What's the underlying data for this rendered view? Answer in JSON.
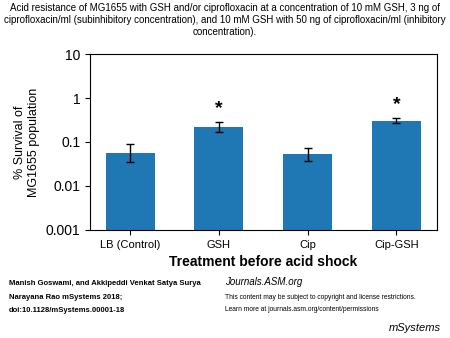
{
  "chart_data": {
    "type": "bar",
    "title": "Acid resistance of MG1655 with GSH and/or ciprofloxacin at a concentration of 10 mM GSH, 3 ng of ciprofloxacin/ml (subinhibitory concentration), and 10 mM GSH with 50 ng of ciprofloxacin/ml (inhibitory concentration).",
    "xlabel": "Treatment before acid shock",
    "ylabel": "% Survival of\nMG1655 population",
    "categories": [
      "LB (Control)",
      "GSH",
      "Cip",
      "Cip-GSH"
    ],
    "values": [
      0.055,
      0.22,
      0.052,
      0.3
    ],
    "errors_upper": [
      0.035,
      0.07,
      0.022,
      0.045
    ],
    "errors_lower": [
      0.02,
      0.05,
      0.015,
      0.03
    ],
    "log": "y",
    "ylim": [
      0.001,
      10
    ],
    "yticks": [
      0.001,
      0.01,
      0.1,
      1,
      10
    ],
    "annotations": [
      {
        "text": "*",
        "category": "GSH"
      },
      {
        "text": "*",
        "category": "Cip-GSH"
      }
    ],
    "footer": {
      "citation": [
        "Manish Goswami, and Akkipeddi Venkat Satya Surya",
        "Narayana Rao mSystems 2018;",
        "doi:10.1128/mSystems.00001-18"
      ],
      "journal": "Journals.ASM.org",
      "rights": [
        "This content may be subject to copyright and license restrictions.",
        "Learn more at journals.asm.org/content/permissions"
      ],
      "logo": "mSystems"
    }
  }
}
